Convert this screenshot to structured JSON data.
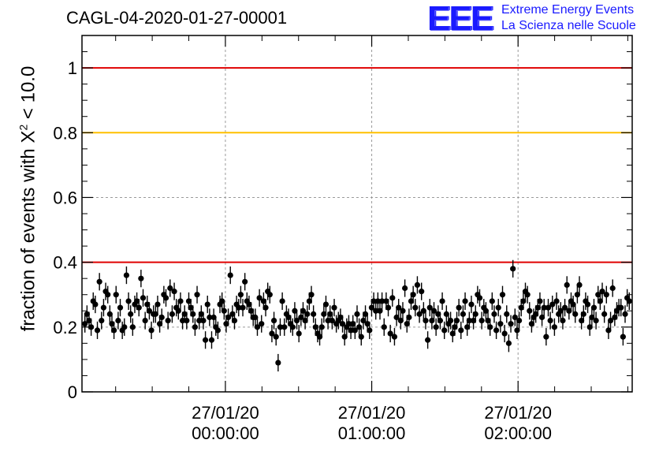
{
  "title": "CAGL-04-2020-01-27-00001",
  "logo": {
    "mark": "EEE",
    "line1": "Extreme Energy Events",
    "line2": "La Scienza nelle Scuole",
    "color": "#1a1aff"
  },
  "chart_data": {
    "type": "scatter",
    "title": "CAGL-04-2020-01-27-00001",
    "ylabel_prefix": "fraction of events with X",
    "ylabel_sup": "2",
    "ylabel_suffix": " < 10.0",
    "xlabel": "",
    "ylim": [
      0,
      1.1
    ],
    "xlim_hours_rel": [
      -0.98,
      2.78
    ],
    "y_ticks": [
      "0",
      "0.2",
      "0.4",
      "0.6",
      "0.8",
      "1"
    ],
    "x_ticks": [
      {
        "date": "27/01/20",
        "time": "00:00:00"
      },
      {
        "date": "27/01/20",
        "time": "01:00:00"
      },
      {
        "date": "27/01/20",
        "time": "02:00:00"
      }
    ],
    "grid": true,
    "reference_lines": [
      {
        "y": 1.0,
        "color": "#e00000"
      },
      {
        "y": 0.8,
        "color": "#ffc000"
      },
      {
        "y": 0.4,
        "color": "#e00000"
      }
    ],
    "marker_color": "#000000",
    "error_bar": 0.027,
    "series": [
      {
        "values": [
          0.21,
          0.24,
          0.22,
          0.2,
          0.28,
          0.27,
          0.19,
          0.34,
          0.22,
          0.26,
          0.31,
          0.3,
          0.24,
          0.21,
          0.19,
          0.3,
          0.22,
          0.26,
          0.19,
          0.2,
          0.36,
          0.28,
          0.24,
          0.2,
          0.27,
          0.28,
          0.26,
          0.35,
          0.29,
          0.22,
          0.27,
          0.25,
          0.19,
          0.24,
          0.24,
          0.27,
          0.21,
          0.23,
          0.3,
          0.29,
          0.22,
          0.32,
          0.24,
          0.31,
          0.26,
          0.25,
          0.28,
          0.22,
          0.24,
          0.22,
          0.28,
          0.26,
          0.24,
          0.2,
          0.3,
          0.22,
          0.24,
          0.22,
          0.16,
          0.27,
          0.23,
          0.16,
          0.23,
          0.2,
          0.19,
          0.27,
          0.28,
          0.25,
          0.21,
          0.23,
          0.36,
          0.24,
          0.22,
          0.27,
          0.26,
          0.3,
          0.26,
          0.34,
          0.28,
          0.27,
          0.25,
          0.23,
          0.23,
          0.2,
          0.29,
          0.21,
          0.28,
          0.26,
          0.31,
          0.3,
          0.18,
          0.22,
          0.17,
          0.09,
          0.2,
          0.28,
          0.2,
          0.24,
          0.23,
          0.21,
          0.2,
          0.25,
          0.22,
          0.18,
          0.23,
          0.25,
          0.22,
          0.24,
          0.28,
          0.3,
          0.24,
          0.2,
          0.18,
          0.17,
          0.2,
          0.24,
          0.27,
          0.22,
          0.24,
          0.22,
          0.26,
          0.21,
          0.22,
          0.23,
          0.21,
          0.17,
          0.2,
          0.21,
          0.19,
          0.21,
          0.19,
          0.24,
          0.2,
          0.17,
          0.22,
          0.24,
          0.21,
          0.19,
          0.26,
          0.28,
          0.25,
          0.28,
          0.25,
          0.28,
          0.2,
          0.28,
          0.26,
          0.18,
          0.29,
          0.17,
          0.23,
          0.26,
          0.22,
          0.25,
          0.32,
          0.21,
          0.23,
          0.28,
          0.3,
          0.26,
          0.33,
          0.24,
          0.31,
          0.25,
          0.22,
          0.16,
          0.26,
          0.22,
          0.25,
          0.2,
          0.24,
          0.22,
          0.28,
          0.19,
          0.24,
          0.21,
          0.22,
          0.18,
          0.2,
          0.22,
          0.26,
          0.19,
          0.24,
          0.28,
          0.2,
          0.22,
          0.27,
          0.22,
          0.24,
          0.3,
          0.29,
          0.22,
          0.26,
          0.25,
          0.22,
          0.2,
          0.28,
          0.24,
          0.19,
          0.26,
          0.21,
          0.3,
          0.18,
          0.24,
          0.15,
          0.21,
          0.38,
          0.23,
          0.19,
          0.22,
          0.26,
          0.28,
          0.31,
          0.3,
          0.25,
          0.21,
          0.23,
          0.24,
          0.26,
          0.28,
          0.23,
          0.26,
          0.17,
          0.26,
          0.22,
          0.27,
          0.2,
          0.28,
          0.24,
          0.25,
          0.22,
          0.26,
          0.33,
          0.25,
          0.28,
          0.27,
          0.24,
          0.3,
          0.33,
          0.22,
          0.24,
          0.28,
          0.27,
          0.2,
          0.23,
          0.26,
          0.22,
          0.3,
          0.28,
          0.31,
          0.24,
          0.3,
          0.19,
          0.22,
          0.32,
          0.23,
          0.25,
          0.26,
          0.26,
          0.17,
          0.24,
          0.29,
          0.28
        ]
      }
    ]
  }
}
